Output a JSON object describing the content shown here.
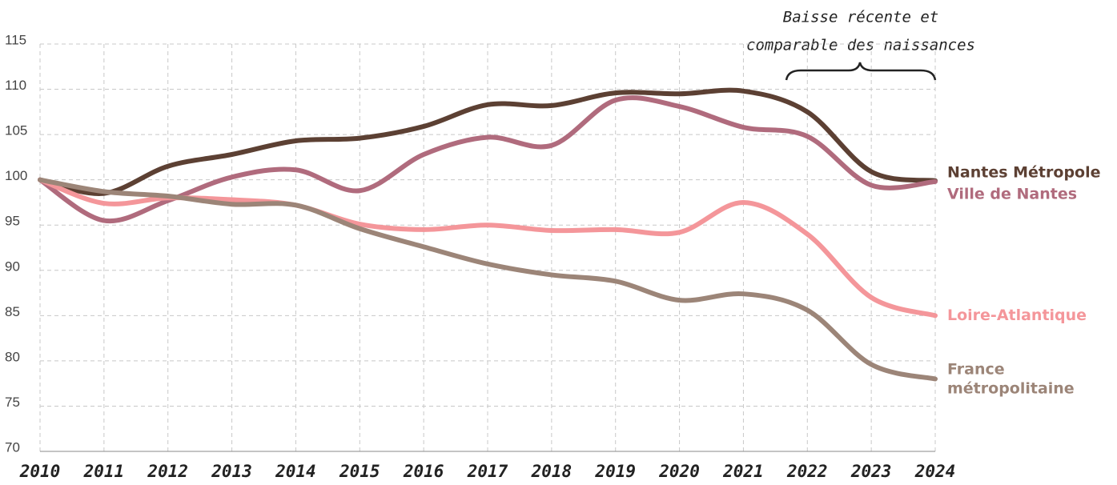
{
  "chart_data": {
    "type": "line",
    "annotation": [
      "Baisse récente et",
      "comparable des naissances"
    ],
    "x": [
      2010,
      2011,
      2012,
      2013,
      2014,
      2015,
      2016,
      2017,
      2018,
      2019,
      2020,
      2021,
      2022,
      2023,
      2024
    ],
    "xlim": [
      2010,
      2024
    ],
    "xticks": [
      2010,
      2011,
      2012,
      2013,
      2014,
      2015,
      2016,
      2017,
      2018,
      2019,
      2020,
      2021,
      2022,
      2023,
      2024
    ],
    "ylim": [
      70,
      115
    ],
    "yticks": [
      70,
      75,
      80,
      85,
      90,
      95,
      100,
      105,
      110,
      115
    ],
    "grid": true,
    "series": [
      {
        "name": "Nantes Métropole",
        "color": "#5c4033",
        "values": [
          100,
          98.5,
          101.5,
          102.8,
          104.3,
          104.6,
          105.9,
          108.3,
          108.2,
          109.6,
          109.5,
          109.8,
          107.5,
          100.9,
          99.9
        ]
      },
      {
        "name": "Ville de Nantes",
        "color": "#b06b7d",
        "values": [
          100,
          95.5,
          97.7,
          100.3,
          101.1,
          98.8,
          102.8,
          104.7,
          103.8,
          108.8,
          108.1,
          105.8,
          104.8,
          99.4,
          99.8
        ]
      },
      {
        "name": "Loire-Atlantique",
        "color": "#f4969a",
        "values": [
          100,
          97.4,
          98.0,
          97.8,
          97.2,
          95.1,
          94.5,
          95.0,
          94.4,
          94.5,
          94.2,
          97.5,
          94.0,
          87.0,
          85.0
        ]
      },
      {
        "name": "France métropolitaine",
        "color": "#9c8578",
        "values": [
          100,
          98.7,
          98.2,
          97.3,
          97.2,
          94.6,
          92.6,
          90.7,
          89.5,
          88.8,
          86.7,
          87.4,
          85.6,
          79.6,
          78.0
        ]
      }
    ]
  }
}
